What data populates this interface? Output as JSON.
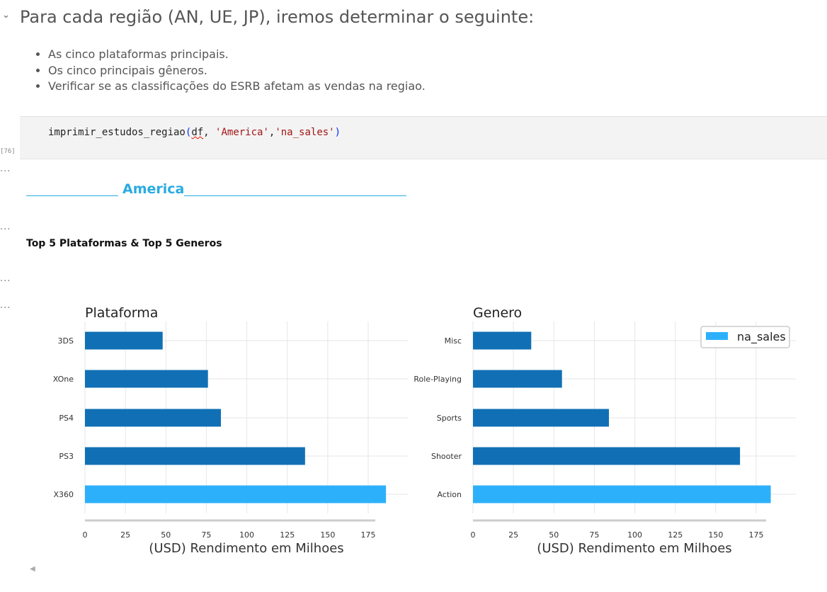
{
  "markdown": {
    "heading": "Para cada região (AN, UE, JP), iremos determinar o seguinte:",
    "bullets": [
      "As cinco plataformas principais.",
      "Os cinco principais gêneros.",
      "Verificar se as classificações do ESRB afetam as vendas na regiao."
    ]
  },
  "code_cell": {
    "exec_count": "[76]",
    "func": "imprimir_estudos_regiao",
    "arg1": "df",
    "arg2": "'America'",
    "arg3": "'na_sales'"
  },
  "output": {
    "ellipsis": "...",
    "region_title": "America",
    "section_title": "Top 5 Plataformas & Top 5 Generos"
  },
  "chart_data": [
    {
      "type": "bar",
      "orientation": "horizontal",
      "title": "Plataforma",
      "xlabel": "(USD) Rendimento em Milhoes",
      "ylabel": "",
      "categories": [
        "X360",
        "PS3",
        "PS4",
        "XOne",
        "3DS"
      ],
      "series": [
        {
          "name": "na_sales",
          "values": [
            186,
            136,
            84,
            76,
            48
          ]
        }
      ],
      "highlight_index": 0,
      "xlim": [
        0,
        175
      ],
      "xticks": [
        0,
        25,
        50,
        75,
        100,
        125,
        150,
        175
      ],
      "grid": true,
      "colors": {
        "bar": "#1170b5",
        "highlight": "#2db0fb"
      }
    },
    {
      "type": "bar",
      "orientation": "horizontal",
      "title": "Genero",
      "xlabel": "(USD) Rendimento em Milhoes",
      "ylabel": "",
      "categories": [
        "Action",
        "Shooter",
        "Sports",
        "Role-Playing",
        "Misc"
      ],
      "series": [
        {
          "name": "na_sales",
          "values": [
            184,
            165,
            84,
            55,
            36
          ]
        }
      ],
      "highlight_index": 0,
      "xlim": [
        0,
        175
      ],
      "xticks": [
        0,
        25,
        50,
        75,
        100,
        125,
        150,
        175
      ],
      "grid": true,
      "legend": {
        "position": "top-right",
        "entries": [
          "na_sales"
        ]
      },
      "colors": {
        "bar": "#1170b5",
        "highlight": "#2db0fb"
      }
    }
  ]
}
